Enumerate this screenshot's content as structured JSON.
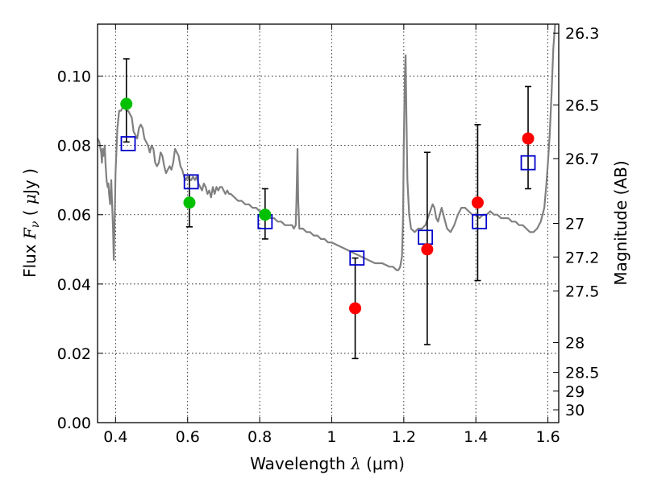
{
  "chart_data": {
    "type": "scatter",
    "title": "",
    "xlabel": "Wavelength  λ (μm)",
    "xlabel_parts": {
      "prefix": "Wavelength  ",
      "symbol": "λ",
      "unit": " (μm)"
    },
    "ylabel": "Flux  Fν  ( μJy )",
    "ylabel_parts": {
      "prefix": "Flux  ",
      "symbol": "F",
      "subscript": "ν",
      "open": "  ( ",
      "unit_symbol": "μ",
      "unit": "Jy )"
    },
    "y2label": "Magnitude (AB)",
    "xlim": [
      0.35,
      1.63
    ],
    "ylim": [
      0.0,
      0.115
    ],
    "grid": true,
    "x_ticks": [
      {
        "value": 0.4,
        "label": "0.4"
      },
      {
        "value": 0.6,
        "label": "0.6"
      },
      {
        "value": 0.8,
        "label": "0.8"
      },
      {
        "value": 1.0,
        "label": "1"
      },
      {
        "value": 1.2,
        "label": "1.2"
      },
      {
        "value": 1.4,
        "label": "1.4"
      },
      {
        "value": 1.6,
        "label": "1.6"
      }
    ],
    "y_ticks": [
      {
        "value": 0.0,
        "label": "0.00"
      },
      {
        "value": 0.02,
        "label": "0.02"
      },
      {
        "value": 0.04,
        "label": "0.04"
      },
      {
        "value": 0.06,
        "label": "0.06"
      },
      {
        "value": 0.08,
        "label": "0.08"
      },
      {
        "value": 0.1,
        "label": "0.10"
      }
    ],
    "y2_ticks": [
      {
        "flux": 0.1124,
        "label": "26.3"
      },
      {
        "flux": 0.0917,
        "label": "26.5"
      },
      {
        "flux": 0.0762,
        "label": "26.7"
      },
      {
        "flux": 0.0575,
        "label": "27"
      },
      {
        "flux": 0.0478,
        "label": "27.2"
      },
      {
        "flux": 0.038,
        "label": "27.5"
      },
      {
        "flux": 0.0231,
        "label": "28"
      },
      {
        "flux": 0.0145,
        "label": "28.5"
      },
      {
        "flux": 0.0091,
        "label": "29"
      },
      {
        "flux": 0.0037,
        "label": "30"
      }
    ],
    "colors": {
      "model_line": "#808080",
      "green": "#00c000",
      "red": "#ff0000",
      "model_box": "#0000cc",
      "errorbar": "#000000"
    },
    "series": [
      {
        "type": "line",
        "points": [
          [
            0.35,
            0.082
          ],
          [
            0.355,
            0.081
          ],
          [
            0.36,
            0.078
          ],
          [
            0.362,
            0.075
          ],
          [
            0.364,
            0.079
          ],
          [
            0.367,
            0.077
          ],
          [
            0.37,
            0.08
          ],
          [
            0.372,
            0.075
          ],
          [
            0.375,
            0.07
          ],
          [
            0.378,
            0.068
          ],
          [
            0.38,
            0.069
          ],
          [
            0.382,
            0.066
          ],
          [
            0.385,
            0.063
          ],
          [
            0.388,
            0.07
          ],
          [
            0.39,
            0.064
          ],
          [
            0.393,
            0.056
          ],
          [
            0.395,
            0.047
          ],
          [
            0.398,
            0.062
          ],
          [
            0.4,
            0.072
          ],
          [
            0.405,
            0.085
          ],
          [
            0.41,
            0.09
          ],
          [
            0.415,
            0.09
          ],
          [
            0.42,
            0.091
          ],
          [
            0.425,
            0.093
          ],
          [
            0.43,
            0.09
          ],
          [
            0.435,
            0.09
          ],
          [
            0.44,
            0.089
          ],
          [
            0.445,
            0.088
          ],
          [
            0.45,
            0.084
          ],
          [
            0.455,
            0.083
          ],
          [
            0.46,
            0.082
          ],
          [
            0.465,
            0.085
          ],
          [
            0.47,
            0.086
          ],
          [
            0.475,
            0.085
          ],
          [
            0.48,
            0.082
          ],
          [
            0.485,
            0.081
          ],
          [
            0.49,
            0.08
          ],
          [
            0.495,
            0.078
          ],
          [
            0.5,
            0.08
          ],
          [
            0.505,
            0.079
          ],
          [
            0.51,
            0.075
          ],
          [
            0.515,
            0.074
          ],
          [
            0.52,
            0.075
          ],
          [
            0.525,
            0.078
          ],
          [
            0.53,
            0.077
          ],
          [
            0.535,
            0.074
          ],
          [
            0.54,
            0.072
          ],
          [
            0.545,
            0.073
          ],
          [
            0.55,
            0.074
          ],
          [
            0.555,
            0.073
          ],
          [
            0.56,
            0.075
          ],
          [
            0.565,
            0.079
          ],
          [
            0.57,
            0.078
          ],
          [
            0.575,
            0.077
          ],
          [
            0.58,
            0.074
          ],
          [
            0.585,
            0.073
          ],
          [
            0.59,
            0.071
          ],
          [
            0.595,
            0.07
          ],
          [
            0.6,
            0.071
          ],
          [
            0.605,
            0.07
          ],
          [
            0.61,
            0.07
          ],
          [
            0.615,
            0.071
          ],
          [
            0.62,
            0.07
          ],
          [
            0.625,
            0.071
          ],
          [
            0.63,
            0.069
          ],
          [
            0.635,
            0.068
          ],
          [
            0.64,
            0.067
          ],
          [
            0.645,
            0.069
          ],
          [
            0.65,
            0.068
          ],
          [
            0.655,
            0.066
          ],
          [
            0.66,
            0.067
          ],
          [
            0.665,
            0.065
          ],
          [
            0.67,
            0.068
          ],
          [
            0.675,
            0.066
          ],
          [
            0.68,
            0.068
          ],
          [
            0.685,
            0.067
          ],
          [
            0.69,
            0.068
          ],
          [
            0.695,
            0.068
          ],
          [
            0.7,
            0.067
          ],
          [
            0.705,
            0.066
          ],
          [
            0.71,
            0.067
          ],
          [
            0.715,
            0.066
          ],
          [
            0.72,
            0.066
          ],
          [
            0.73,
            0.065
          ],
          [
            0.74,
            0.064
          ],
          [
            0.75,
            0.064
          ],
          [
            0.76,
            0.063
          ],
          [
            0.77,
            0.063
          ],
          [
            0.78,
            0.062
          ],
          [
            0.79,
            0.062
          ],
          [
            0.8,
            0.061
          ],
          [
            0.81,
            0.06
          ],
          [
            0.82,
            0.06
          ],
          [
            0.83,
            0.059
          ],
          [
            0.84,
            0.059
          ],
          [
            0.85,
            0.058
          ],
          [
            0.86,
            0.058
          ],
          [
            0.87,
            0.057
          ],
          [
            0.88,
            0.057
          ],
          [
            0.89,
            0.057
          ],
          [
            0.895,
            0.056
          ],
          [
            0.9,
            0.057
          ],
          [
            0.902,
            0.064
          ],
          [
            0.905,
            0.079
          ],
          [
            0.907,
            0.064
          ],
          [
            0.91,
            0.056
          ],
          [
            0.92,
            0.056
          ],
          [
            0.93,
            0.055
          ],
          [
            0.94,
            0.055
          ],
          [
            0.95,
            0.054
          ],
          [
            0.96,
            0.054
          ],
          [
            0.97,
            0.053
          ],
          [
            0.98,
            0.053
          ],
          [
            0.99,
            0.052
          ],
          [
            1.0,
            0.052
          ],
          [
            1.02,
            0.051
          ],
          [
            1.04,
            0.05
          ],
          [
            1.06,
            0.049
          ],
          [
            1.08,
            0.048
          ],
          [
            1.1,
            0.047
          ],
          [
            1.12,
            0.046
          ],
          [
            1.14,
            0.046
          ],
          [
            1.16,
            0.045
          ],
          [
            1.17,
            0.045
          ],
          [
            1.18,
            0.044
          ],
          [
            1.185,
            0.044
          ],
          [
            1.19,
            0.045
          ],
          [
            1.195,
            0.048
          ],
          [
            1.198,
            0.06
          ],
          [
            1.2,
            0.08
          ],
          [
            1.203,
            0.1
          ],
          [
            1.205,
            0.106
          ],
          [
            1.207,
            0.09
          ],
          [
            1.21,
            0.07
          ],
          [
            1.215,
            0.06
          ],
          [
            1.22,
            0.056
          ],
          [
            1.23,
            0.055
          ],
          [
            1.24,
            0.056
          ],
          [
            1.25,
            0.056
          ],
          [
            1.26,
            0.057
          ],
          [
            1.27,
            0.06
          ],
          [
            1.28,
            0.063
          ],
          [
            1.285,
            0.062
          ],
          [
            1.29,
            0.059
          ],
          [
            1.295,
            0.058
          ],
          [
            1.3,
            0.06
          ],
          [
            1.305,
            0.062
          ],
          [
            1.31,
            0.06
          ],
          [
            1.315,
            0.058
          ],
          [
            1.32,
            0.056
          ],
          [
            1.33,
            0.055
          ],
          [
            1.34,
            0.057
          ],
          [
            1.35,
            0.06
          ],
          [
            1.36,
            0.062
          ],
          [
            1.37,
            0.062
          ],
          [
            1.38,
            0.061
          ],
          [
            1.39,
            0.06
          ],
          [
            1.4,
            0.06
          ],
          [
            1.41,
            0.059
          ],
          [
            1.42,
            0.06
          ],
          [
            1.43,
            0.06
          ],
          [
            1.44,
            0.061
          ],
          [
            1.45,
            0.06
          ],
          [
            1.46,
            0.06
          ],
          [
            1.47,
            0.059
          ],
          [
            1.48,
            0.059
          ],
          [
            1.49,
            0.059
          ],
          [
            1.5,
            0.058
          ],
          [
            1.51,
            0.058
          ],
          [
            1.52,
            0.057
          ],
          [
            1.53,
            0.057
          ],
          [
            1.54,
            0.056
          ],
          [
            1.55,
            0.055
          ],
          [
            1.56,
            0.055
          ],
          [
            1.57,
            0.056
          ],
          [
            1.58,
            0.058
          ],
          [
            1.59,
            0.062
          ],
          [
            1.595,
            0.068
          ],
          [
            1.6,
            0.075
          ],
          [
            1.605,
            0.083
          ],
          [
            1.61,
            0.095
          ],
          [
            1.615,
            0.108
          ],
          [
            1.62,
            0.115
          ]
        ]
      },
      {
        "type": "scatter",
        "marker": "circle",
        "color_key": "green",
        "points": [
          {
            "x": 0.43,
            "y": 0.092,
            "yerr_low": 0.081,
            "yerr_high": 0.105
          },
          {
            "x": 0.605,
            "y": 0.0635,
            "yerr_low": 0.0565,
            "yerr_high": 0.0715
          },
          {
            "x": 0.815,
            "y": 0.06,
            "yerr_low": 0.053,
            "yerr_high": 0.0675
          }
        ]
      },
      {
        "type": "scatter",
        "marker": "circle",
        "color_key": "red",
        "points": [
          {
            "x": 1.065,
            "y": 0.033,
            "yerr_low": 0.0185,
            "yerr_high": 0.0475
          },
          {
            "x": 1.265,
            "y": 0.05,
            "yerr_low": 0.0225,
            "yerr_high": 0.078
          },
          {
            "x": 1.405,
            "y": 0.0635,
            "yerr_low": 0.041,
            "yerr_high": 0.086
          },
          {
            "x": 1.545,
            "y": 0.082,
            "yerr_low": 0.0675,
            "yerr_high": 0.097
          }
        ]
      },
      {
        "type": "scatter",
        "marker": "open-square",
        "color_key": "model_box",
        "points": [
          {
            "x": 0.435,
            "y": 0.0805
          },
          {
            "x": 0.61,
            "y": 0.0695
          },
          {
            "x": 0.815,
            "y": 0.058
          },
          {
            "x": 1.07,
            "y": 0.0475
          },
          {
            "x": 1.26,
            "y": 0.0535
          },
          {
            "x": 1.41,
            "y": 0.058
          },
          {
            "x": 1.545,
            "y": 0.075
          }
        ]
      }
    ]
  }
}
